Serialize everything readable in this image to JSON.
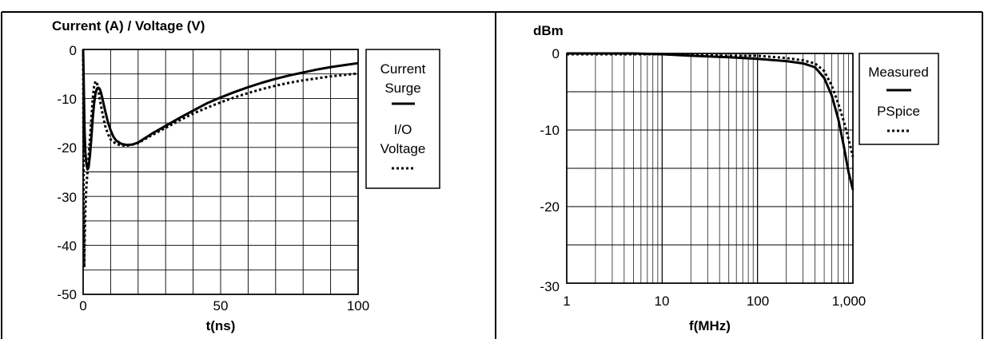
{
  "chart_data": [
    {
      "type": "line",
      "title": "Current (A) / Voltage (V)",
      "xlabel": "t(ns)",
      "ylabel": "Current (A) / Voltage (V)",
      "xlim": [
        0,
        100
      ],
      "ylim": [
        -50,
        0
      ],
      "grid": true,
      "legend_position": "right",
      "xticks": [
        "0",
        "50",
        "100"
      ],
      "yticks": [
        "0",
        "-10",
        "-20",
        "-30",
        "-40",
        "-50"
      ],
      "legend": {
        "series_a_label_1": "Current",
        "series_a_label_2": "Surge",
        "series_b_label_1": "I/O",
        "series_b_label_2": "Voltage"
      },
      "series": [
        {
          "name": "Current Surge",
          "style": "solid",
          "x": [
            0,
            0.2,
            0.5,
            0.8,
            1.2,
            1.6,
            2.0,
            2.5,
            3.0,
            3.5,
            4.0,
            4.5,
            5.0,
            5.5,
            6.0,
            6.5,
            7.0,
            8.0,
            9.0,
            10,
            11,
            12,
            14,
            16,
            18,
            20,
            25,
            30,
            35,
            40,
            45,
            50,
            55,
            60,
            65,
            70,
            75,
            80,
            85,
            90,
            95,
            100
          ],
          "y": [
            0,
            -6,
            -16,
            -21,
            -23.5,
            -24.5,
            -24,
            -21.5,
            -18,
            -14,
            -11,
            -9,
            -8,
            -7.8,
            -8,
            -8.8,
            -10,
            -12.5,
            -14.8,
            -16.5,
            -17.8,
            -18.6,
            -19.3,
            -19.5,
            -19.4,
            -19.0,
            -17.2,
            -15.6,
            -14.0,
            -12.5,
            -11.0,
            -9.8,
            -8.7,
            -7.7,
            -6.8,
            -6.0,
            -5.3,
            -4.7,
            -4.1,
            -3.6,
            -3.2,
            -2.8
          ]
        },
        {
          "name": "I/O Voltage",
          "style": "dotted",
          "x": [
            0,
            0.2,
            0.4,
            0.6,
            0.8,
            1.0,
            1.3,
            1.6,
            2.0,
            2.5,
            3.0,
            3.5,
            4.0,
            4.5,
            5.0,
            5.5,
            6.0,
            7.0,
            8.0,
            9.0,
            10,
            12,
            14,
            16,
            18,
            20,
            25,
            30,
            35,
            40,
            45,
            50,
            55,
            60,
            65,
            70,
            75,
            80,
            85,
            90,
            95,
            100
          ],
          "y": [
            0,
            -30,
            -44.5,
            -38,
            -33,
            -30,
            -27,
            -25,
            -22,
            -18,
            -14,
            -10,
            -7.5,
            -6.5,
            -6.8,
            -8,
            -10,
            -13,
            -15.6,
            -17.2,
            -18.4,
            -19.3,
            -19.6,
            -19.6,
            -19.4,
            -19.1,
            -17.5,
            -16.0,
            -14.5,
            -13.1,
            -11.9,
            -10.8,
            -9.8,
            -8.9,
            -8.1,
            -7.4,
            -6.8,
            -6.3,
            -5.9,
            -5.5,
            -5.2,
            -4.9
          ]
        }
      ]
    },
    {
      "type": "line",
      "title": "dBm",
      "xlabel": "f(MHz)",
      "ylabel": "dBm",
      "xscale": "log",
      "xlim": [
        1,
        1000
      ],
      "ylim": [
        -30,
        0
      ],
      "grid": true,
      "legend_position": "right",
      "xticks": [
        "1",
        "10",
        "100",
        "1,000"
      ],
      "yticks": [
        "0",
        "-10",
        "-20",
        "-30"
      ],
      "series": [
        {
          "name": "Measured",
          "style": "solid",
          "x": [
            1,
            2,
            5,
            10,
            20,
            50,
            100,
            200,
            300,
            400,
            500,
            600,
            700,
            800,
            900,
            1000
          ],
          "y": [
            0,
            0,
            0,
            -0.1,
            -0.3,
            -0.5,
            -0.7,
            -1.0,
            -1.3,
            -1.8,
            -3.2,
            -5.5,
            -8.5,
            -12,
            -15.5,
            -17.8
          ]
        },
        {
          "name": "PSpice",
          "style": "dotted",
          "x": [
            1,
            2,
            5,
            10,
            20,
            50,
            100,
            200,
            300,
            400,
            500,
            600,
            700,
            800,
            900,
            1000
          ],
          "y": [
            -0.1,
            -0.1,
            -0.1,
            -0.1,
            -0.2,
            -0.3,
            -0.3,
            -0.6,
            -0.9,
            -1.3,
            -2.3,
            -4.2,
            -6.5,
            -8.8,
            -11.2,
            -13.5
          ]
        }
      ]
    }
  ]
}
